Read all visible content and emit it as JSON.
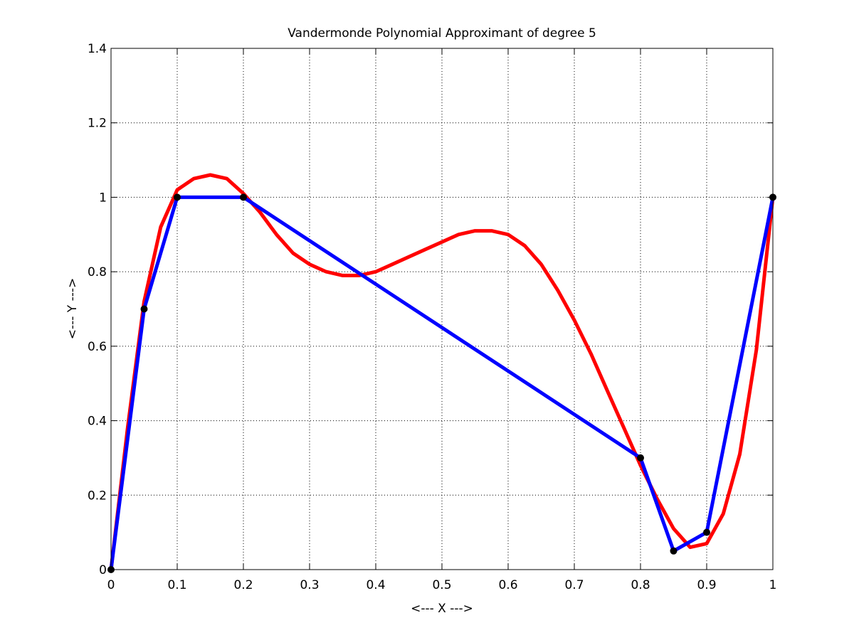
{
  "chart_data": {
    "type": "line",
    "title": "Vandermonde Polynomial Approximant of degree 5",
    "xlabel": "<--- X --->",
    "ylabel": "<--- Y --->",
    "xlim": [
      0,
      1
    ],
    "ylim": [
      0,
      1.4
    ],
    "grid": true,
    "x_ticks": [
      0,
      0.1,
      0.2,
      0.3,
      0.4,
      0.5,
      0.6,
      0.7,
      0.8,
      0.9,
      1
    ],
    "x_tick_labels": [
      "0",
      "0.1",
      "0.2",
      "0.3",
      "0.4",
      "0.5",
      "0.6",
      "0.7",
      "0.8",
      "0.9",
      "1"
    ],
    "y_ticks": [
      0,
      0.2,
      0.4,
      0.6,
      0.8,
      1.0,
      1.2,
      1.4
    ],
    "y_tick_labels": [
      "0",
      "0.2",
      "0.4",
      "0.6",
      "0.8",
      "1",
      "1.2",
      "1.4"
    ],
    "series": [
      {
        "style": "line",
        "color": "#ff0000",
        "x": [
          0,
          0.025,
          0.05,
          0.075,
          0.1,
          0.125,
          0.15,
          0.175,
          0.2,
          0.225,
          0.25,
          0.275,
          0.3,
          0.325,
          0.35,
          0.375,
          0.4,
          0.425,
          0.45,
          0.475,
          0.5,
          0.525,
          0.55,
          0.575,
          0.6,
          0.625,
          0.65,
          0.675,
          0.7,
          0.725,
          0.75,
          0.775,
          0.8,
          0.825,
          0.85,
          0.875,
          0.9,
          0.925,
          0.95,
          0.975,
          1
        ],
        "y": [
          0,
          0.38,
          0.72,
          0.92,
          1.02,
          1.05,
          1.06,
          1.05,
          1.01,
          0.96,
          0.9,
          0.85,
          0.82,
          0.8,
          0.79,
          0.79,
          0.8,
          0.82,
          0.84,
          0.86,
          0.88,
          0.9,
          0.91,
          0.91,
          0.9,
          0.87,
          0.82,
          0.75,
          0.67,
          0.58,
          0.48,
          0.38,
          0.28,
          0.19,
          0.11,
          0.06,
          0.07,
          0.15,
          0.31,
          0.59,
          1.0
        ]
      },
      {
        "style": "line",
        "color": "#0000ff",
        "x": [
          0,
          0.05,
          0.1,
          0.2,
          0.8,
          0.85,
          0.9,
          1
        ],
        "y": [
          0,
          0.7,
          1,
          1,
          0.3,
          0.05,
          0.1,
          1
        ]
      },
      {
        "style": "markers",
        "color": "#000000",
        "x": [
          0,
          0.05,
          0.1,
          0.2,
          0.8,
          0.85,
          0.9,
          1
        ],
        "y": [
          0,
          0.7,
          1,
          1,
          0.3,
          0.05,
          0.1,
          1
        ]
      }
    ]
  }
}
